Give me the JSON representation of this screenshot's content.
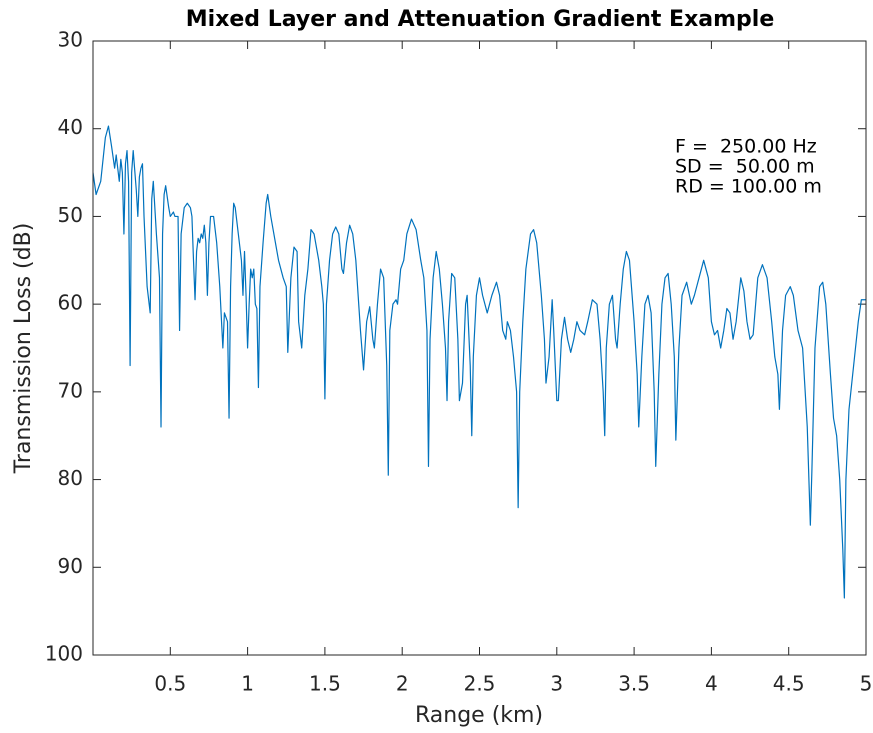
{
  "chart_data": {
    "type": "line",
    "title": "Mixed Layer and Attenuation Gradient Example",
    "xlabel": "Range (km)",
    "ylabel": "Transmission Loss (dB)",
    "annotations": [
      "F =  250.00 Hz",
      "SD =  50.00 m",
      "RD = 100.00 m"
    ],
    "color": "#0072bd",
    "xlim": [
      0,
      5
    ],
    "xticks": [
      0.5,
      1,
      1.5,
      2,
      2.5,
      3,
      3.5,
      4,
      4.5,
      5
    ],
    "ylim": [
      30,
      100
    ],
    "yticks": [
      30,
      40,
      50,
      60,
      70,
      80,
      90,
      100
    ],
    "y_reversed": true,
    "grid": false,
    "x": [
      0,
      0.02,
      0.05,
      0.08,
      0.1,
      0.12,
      0.14,
      0.15,
      0.17,
      0.18,
      0.19,
      0.2,
      0.21,
      0.22,
      0.23,
      0.24,
      0.25,
      0.26,
      0.28,
      0.29,
      0.3,
      0.31,
      0.32,
      0.33,
      0.35,
      0.37,
      0.38,
      0.39,
      0.41,
      0.43,
      0.44,
      0.45,
      0.46,
      0.47,
      0.49,
      0.5,
      0.52,
      0.53,
      0.55,
      0.56,
      0.57,
      0.59,
      0.61,
      0.63,
      0.64,
      0.65,
      0.66,
      0.67,
      0.68,
      0.69,
      0.7,
      0.71,
      0.72,
      0.73,
      0.74,
      0.75,
      0.76,
      0.78,
      0.8,
      0.82,
      0.84,
      0.85,
      0.87,
      0.88,
      0.89,
      0.9,
      0.91,
      0.92,
      0.94,
      0.96,
      0.97,
      0.98,
      0.99,
      1,
      1.01,
      1.02,
      1.03,
      1.04,
      1.05,
      1.06,
      1.07,
      1.08,
      1.1,
      1.12,
      1.13,
      1.15,
      1.18,
      1.2,
      1.23,
      1.25,
      1.26,
      1.28,
      1.3,
      1.32,
      1.33,
      1.35,
      1.37,
      1.39,
      1.41,
      1.43,
      1.46,
      1.48,
      1.49,
      1.5,
      1.51,
      1.53,
      1.55,
      1.57,
      1.59,
      1.61,
      1.62,
      1.64,
      1.66,
      1.68,
      1.7,
      1.73,
      1.75,
      1.77,
      1.79,
      1.81,
      1.82,
      1.84,
      1.86,
      1.88,
      1.9,
      1.91,
      1.92,
      1.94,
      1.96,
      1.97,
      1.99,
      2.01,
      2.03,
      2.06,
      2.09,
      2.12,
      2.14,
      2.16,
      2.17,
      2.18,
      2.2,
      2.22,
      2.24,
      2.26,
      2.28,
      2.29,
      2.3,
      2.32,
      2.34,
      2.36,
      2.37,
      2.39,
      2.41,
      2.42,
      2.44,
      2.45,
      2.46,
      2.48,
      2.5,
      2.52,
      2.55,
      2.58,
      2.61,
      2.63,
      2.65,
      2.67,
      2.68,
      2.7,
      2.72,
      2.74,
      2.75,
      2.76,
      2.78,
      2.8,
      2.83,
      2.85,
      2.87,
      2.9,
      2.92,
      2.93,
      2.95,
      2.97,
      2.98,
      3,
      3.01,
      3.03,
      3.05,
      3.07,
      3.09,
      3.11,
      3.13,
      3.15,
      3.18,
      3.2,
      3.23,
      3.26,
      3.28,
      3.3,
      3.31,
      3.32,
      3.34,
      3.36,
      3.38,
      3.39,
      3.41,
      3.43,
      3.45,
      3.47,
      3.5,
      3.52,
      3.53,
      3.55,
      3.57,
      3.59,
      3.61,
      3.63,
      3.64,
      3.66,
      3.68,
      3.7,
      3.72,
      3.74,
      3.76,
      3.77,
      3.79,
      3.81,
      3.84,
      3.87,
      3.89,
      3.92,
      3.95,
      3.98,
      4,
      4.02,
      4.04,
      4.06,
      4.08,
      4.1,
      4.12,
      4.14,
      4.16,
      4.19,
      4.21,
      4.23,
      4.25,
      4.27,
      4.3,
      4.33,
      4.36,
      4.39,
      4.41,
      4.43,
      4.44,
      4.46,
      4.48,
      4.51,
      4.53,
      4.56,
      4.59,
      4.62,
      4.64,
      4.65,
      4.67,
      4.7,
      4.72,
      4.74,
      4.77,
      4.79,
      4.81,
      4.83,
      4.85,
      4.86,
      4.87,
      4.89,
      4.92,
      4.95,
      4.97,
      5
    ],
    "values": [
      45,
      47.5,
      46,
      41,
      39.7,
      42,
      44.5,
      43,
      46,
      43.5,
      45,
      52,
      44,
      42.5,
      46,
      67,
      45,
      42.5,
      47,
      50,
      45.5,
      44.5,
      44,
      50,
      58,
      61,
      48,
      46,
      52,
      57,
      74,
      52,
      47.5,
      46.5,
      49,
      50,
      49.5,
      50,
      50,
      63,
      52,
      49,
      48.5,
      49,
      50,
      55,
      59.5,
      54,
      52.5,
      53,
      52,
      52.5,
      51,
      53,
      59,
      53,
      50,
      50,
      53,
      58,
      65,
      61,
      62,
      73,
      58,
      52,
      48.5,
      49,
      52,
      55,
      59,
      54,
      59,
      65,
      60,
      56,
      57,
      56,
      60,
      60.5,
      69.5,
      58,
      53,
      48.5,
      47.5,
      50,
      53,
      55,
      57,
      58,
      65.5,
      57,
      53.5,
      54,
      62,
      65,
      59,
      56,
      51.5,
      52,
      55,
      58,
      60,
      70.8,
      60,
      55,
      52,
      51.2,
      52,
      56,
      56.5,
      53,
      51,
      52,
      55,
      63,
      67.5,
      62,
      60.3,
      64,
      65,
      60,
      56,
      57,
      67,
      79.5,
      63,
      60,
      59.5,
      60,
      56,
      55,
      52,
      50.3,
      51.5,
      55,
      57,
      63,
      78.5,
      64,
      57,
      54,
      56,
      60,
      65,
      71,
      62,
      56.5,
      57,
      64,
      71,
      69,
      60,
      59,
      67,
      75,
      66,
      59,
      57,
      59,
      61,
      59,
      57.5,
      59,
      63,
      64,
      62,
      63,
      66,
      70,
      83.2,
      70,
      62,
      56,
      52,
      51.5,
      53,
      59,
      64,
      69,
      66,
      59.5,
      63,
      71,
      71,
      64,
      61.5,
      64,
      65.5,
      64,
      62,
      63,
      63.5,
      62,
      59.5,
      60,
      64,
      70,
      75,
      65,
      60,
      59,
      64,
      65,
      60,
      56,
      54,
      55,
      62,
      68,
      74,
      66,
      60,
      59,
      61,
      70,
      78.5,
      68,
      60,
      57,
      56.5,
      60,
      66,
      75.5,
      65,
      59,
      57.5,
      60,
      59,
      57,
      55,
      57,
      62,
      63.5,
      63,
      65,
      63,
      60.5,
      61,
      64,
      62,
      57,
      58.5,
      62,
      64,
      63.5,
      57,
      55.5,
      57,
      62,
      66,
      68,
      72,
      63,
      59,
      58,
      59,
      63,
      65,
      74,
      85.2,
      79,
      65,
      58,
      57.5,
      60,
      68,
      73,
      75,
      80,
      88,
      93.5,
      80,
      72,
      67,
      62,
      59.5,
      59.5
    ]
  }
}
